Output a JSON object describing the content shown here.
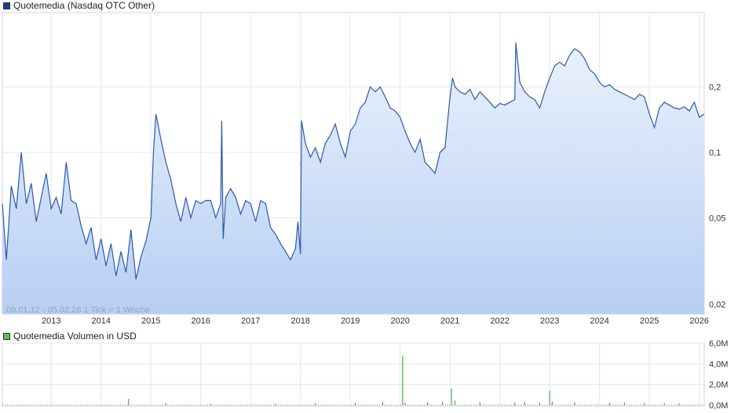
{
  "chart_data": [
    {
      "type": "area",
      "legend": "Quotemedia (Nasdaq OTC Other)",
      "legend_color": "#1a3f8f",
      "line_color": "#2a5aa8",
      "fill_top_color": "#eaf1fc",
      "fill_bottom_color": "#b7cff4",
      "y_scale": "log",
      "ylim": [
        0.018,
        0.44
      ],
      "y_ticks": [
        {
          "value": 0.02,
          "label": "0,02"
        },
        {
          "value": 0.05,
          "label": "0,05"
        },
        {
          "value": 0.1,
          "label": "0,1"
        },
        {
          "value": 0.2,
          "label": "0,2"
        }
      ],
      "x_range": [
        2012.02,
        2026.1
      ],
      "x_ticks": [
        2013,
        2014,
        2015,
        2016,
        2017,
        2018,
        2019,
        2020,
        2021,
        2022,
        2023,
        2024,
        2025,
        2026
      ],
      "range_note": "09.01.12 - 05.02.26   1 Tick = 1 Woche",
      "series": [
        {
          "name": "Quotemedia (Nasdaq OTC Other)",
          "x": [
            2012.02,
            2012.1,
            2012.2,
            2012.3,
            2012.4,
            2012.5,
            2012.6,
            2012.7,
            2012.8,
            2012.9,
            2013.0,
            2013.1,
            2013.2,
            2013.3,
            2013.4,
            2013.5,
            2013.6,
            2013.7,
            2013.8,
            2013.9,
            2014.0,
            2014.1,
            2014.2,
            2014.3,
            2014.4,
            2014.5,
            2014.6,
            2014.7,
            2014.8,
            2014.9,
            2015.0,
            2015.05,
            2015.1,
            2015.2,
            2015.3,
            2015.4,
            2015.5,
            2015.6,
            2015.7,
            2015.8,
            2015.9,
            2016.0,
            2016.1,
            2016.2,
            2016.3,
            2016.4,
            2016.42,
            2016.45,
            2016.5,
            2016.6,
            2016.7,
            2016.8,
            2016.9,
            2017.0,
            2017.1,
            2017.2,
            2017.3,
            2017.4,
            2017.5,
            2017.6,
            2017.7,
            2017.8,
            2017.9,
            2017.95,
            2018.0,
            2018.02,
            2018.1,
            2018.2,
            2018.3,
            2018.4,
            2018.5,
            2018.6,
            2018.7,
            2018.8,
            2018.9,
            2019.0,
            2019.1,
            2019.2,
            2019.3,
            2019.4,
            2019.5,
            2019.6,
            2019.7,
            2019.8,
            2019.9,
            2020.0,
            2020.1,
            2020.2,
            2020.3,
            2020.4,
            2020.5,
            2020.6,
            2020.7,
            2020.8,
            2020.9,
            2021.0,
            2021.05,
            2021.1,
            2021.2,
            2021.3,
            2021.4,
            2021.5,
            2021.6,
            2021.7,
            2021.8,
            2021.9,
            2022.0,
            2022.1,
            2022.2,
            2022.3,
            2022.32,
            2022.4,
            2022.5,
            2022.6,
            2022.7,
            2022.8,
            2022.9,
            2023.0,
            2023.1,
            2023.2,
            2023.3,
            2023.4,
            2023.5,
            2023.6,
            2023.7,
            2023.8,
            2023.9,
            2024.0,
            2024.1,
            2024.2,
            2024.3,
            2024.4,
            2024.5,
            2024.6,
            2024.7,
            2024.8,
            2024.9,
            2025.0,
            2025.1,
            2025.2,
            2025.3,
            2025.4,
            2025.5,
            2025.6,
            2025.7,
            2025.8,
            2025.9,
            2026.0,
            2026.1
          ],
          "values": [
            0.058,
            0.032,
            0.07,
            0.055,
            0.1,
            0.058,
            0.072,
            0.048,
            0.062,
            0.08,
            0.055,
            0.062,
            0.052,
            0.09,
            0.06,
            0.058,
            0.046,
            0.038,
            0.045,
            0.032,
            0.04,
            0.03,
            0.038,
            0.027,
            0.035,
            0.028,
            0.044,
            0.026,
            0.033,
            0.039,
            0.05,
            0.1,
            0.15,
            0.115,
            0.09,
            0.075,
            0.058,
            0.048,
            0.062,
            0.05,
            0.06,
            0.058,
            0.06,
            0.06,
            0.05,
            0.058,
            0.14,
            0.04,
            0.062,
            0.068,
            0.062,
            0.052,
            0.06,
            0.058,
            0.048,
            0.06,
            0.058,
            0.045,
            0.042,
            0.038,
            0.035,
            0.032,
            0.036,
            0.048,
            0.034,
            0.14,
            0.11,
            0.095,
            0.105,
            0.09,
            0.11,
            0.12,
            0.135,
            0.11,
            0.095,
            0.125,
            0.135,
            0.16,
            0.17,
            0.2,
            0.19,
            0.2,
            0.18,
            0.16,
            0.155,
            0.145,
            0.125,
            0.11,
            0.1,
            0.115,
            0.09,
            0.085,
            0.08,
            0.1,
            0.105,
            0.18,
            0.22,
            0.2,
            0.19,
            0.185,
            0.195,
            0.175,
            0.19,
            0.18,
            0.17,
            0.16,
            0.168,
            0.165,
            0.17,
            0.175,
            0.32,
            0.21,
            0.19,
            0.18,
            0.175,
            0.16,
            0.19,
            0.22,
            0.25,
            0.26,
            0.25,
            0.28,
            0.3,
            0.29,
            0.27,
            0.24,
            0.23,
            0.21,
            0.2,
            0.205,
            0.195,
            0.19,
            0.185,
            0.18,
            0.175,
            0.185,
            0.18,
            0.15,
            0.13,
            0.16,
            0.17,
            0.165,
            0.16,
            0.158,
            0.162,
            0.155,
            0.17,
            0.145,
            0.15
          ]
        }
      ]
    },
    {
      "type": "bar",
      "legend": "Quotemedia Volumen in USD",
      "legend_color": "#5cc15c",
      "bar_color": "#3cb43c",
      "ylim": [
        0,
        6000000
      ],
      "y_ticks": [
        {
          "value": 0,
          "label": "0,0M"
        },
        {
          "value": 2000000,
          "label": "2,0M"
        },
        {
          "value": 4000000,
          "label": "4,0M"
        },
        {
          "value": 6000000,
          "label": "6,0M"
        }
      ],
      "x_range": [
        2012.02,
        2026.1
      ],
      "series": [
        {
          "name": "Quotemedia Volumen in USD",
          "x": [
            2014.55,
            2015.3,
            2016.2,
            2017.5,
            2018.3,
            2019.1,
            2019.65,
            2020.05,
            2020.1,
            2020.55,
            2020.85,
            2021.03,
            2021.1,
            2021.6,
            2022.3,
            2022.5,
            2022.8,
            2023.0,
            2023.05,
            2023.5,
            2024.2,
            2024.5,
            2024.9,
            2025.3,
            2025.6
          ],
          "values": [
            600000,
            180000,
            120000,
            140000,
            200000,
            220000,
            300000,
            4800000,
            250000,
            280000,
            350000,
            1600000,
            450000,
            300000,
            280000,
            300000,
            260000,
            1400000,
            350000,
            300000,
            220000,
            260000,
            200000,
            180000,
            160000
          ]
        }
      ]
    }
  ]
}
